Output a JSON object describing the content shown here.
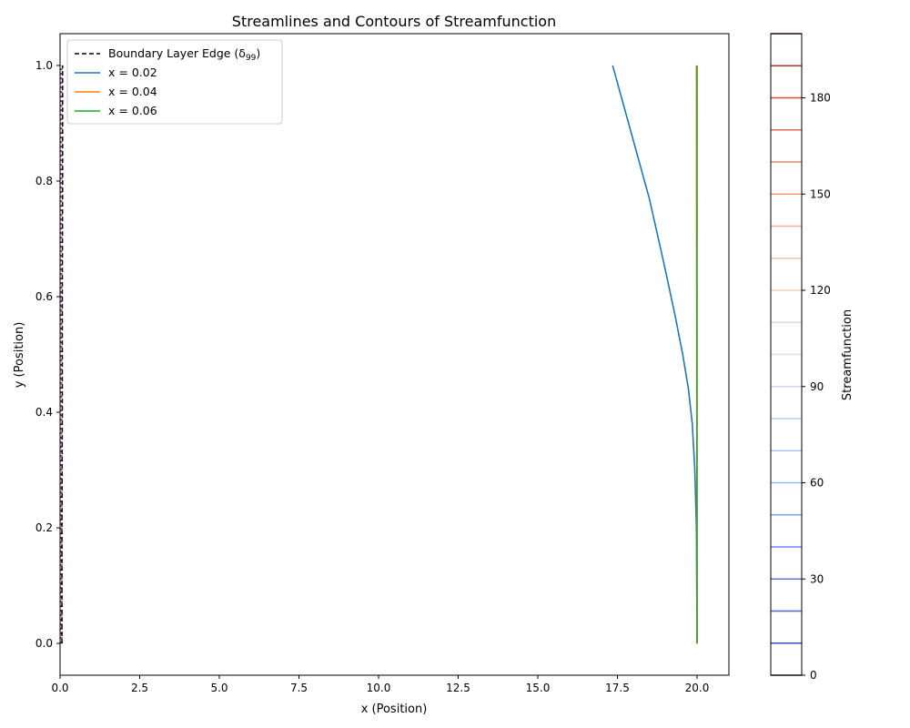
{
  "chart_data": {
    "type": "line",
    "title": "Streamlines and Contours of Streamfunction",
    "xlabel": "x (Position)",
    "ylabel": "y (Position)",
    "xlim": [
      0,
      21
    ],
    "ylim": [
      -0.055,
      1.055
    ],
    "xticks": [
      0,
      2.5,
      5,
      7.5,
      10,
      12.5,
      15,
      17.5,
      20
    ],
    "xtick_labels": [
      "0.0",
      "2.5",
      "5.0",
      "7.5",
      "10.0",
      "12.5",
      "15.0",
      "17.5",
      "20.0"
    ],
    "yticks": [
      0,
      0.2,
      0.4,
      0.6,
      0.8,
      1.0
    ],
    "ytick_labels": [
      "0.0",
      "0.2",
      "0.4",
      "0.6",
      "0.8",
      "1.0"
    ],
    "grid": false,
    "legend_position": "upper left",
    "legend": [
      {
        "label": "Boundary Layer Edge (δ",
        "sub": "99",
        "suffix": ")",
        "color": "#000000",
        "dash": true
      },
      {
        "label": "x = 0.02",
        "color": "#1f77b4",
        "dash": false
      },
      {
        "label": "x = 0.04",
        "color": "#ff7f0e",
        "dash": false
      },
      {
        "label": "x = 0.06",
        "color": "#2ca02c",
        "dash": false
      }
    ],
    "series": [
      {
        "name": "x = 0.02",
        "color": "#1f77b4",
        "x": [
          20.0,
          19.98,
          19.93,
          19.85,
          19.73,
          19.55,
          19.3,
          18.95,
          18.5,
          17.95,
          17.35
        ],
        "y": [
          0.0,
          0.2,
          0.3,
          0.38,
          0.44,
          0.5,
          0.57,
          0.66,
          0.77,
          0.88,
          1.0
        ]
      },
      {
        "name": "x = 0.04",
        "color": "#ff7f0e",
        "x": [
          20.0,
          19.995,
          19.99,
          19.985,
          19.98
        ],
        "y": [
          0.0,
          0.25,
          0.5,
          0.75,
          1.0
        ]
      },
      {
        "name": "x = 0.06",
        "color": "#2ca02c",
        "x": [
          20.0,
          20.0,
          20.0,
          20.0,
          20.0
        ],
        "y": [
          0.0,
          0.25,
          0.5,
          0.75,
          1.0
        ]
      }
    ],
    "boundary_layer_edge": {
      "x": [
        0.06,
        0.06,
        0.07,
        0.07,
        0.08,
        0.08
      ],
      "y": [
        0.0,
        0.2,
        0.4,
        0.6,
        0.8,
        1.0
      ]
    },
    "contours": {
      "x": [
        0.02,
        0.04,
        0.06
      ],
      "colors": [
        "#3b4cc0",
        "#b40426",
        "#9b59b6"
      ]
    },
    "colorbar": {
      "label": "Streamfunction",
      "range": [
        0,
        200
      ],
      "ticks": [
        0,
        30,
        60,
        90,
        120,
        150,
        180
      ],
      "levels": [
        0,
        10,
        20,
        30,
        40,
        50,
        60,
        70,
        80,
        90,
        100,
        110,
        120,
        130,
        140,
        150,
        160,
        170,
        180,
        190,
        200
      ],
      "level_colors": [
        "#1e2a6e",
        "#3b4cc0",
        "#4a62d2",
        "#5b7be0",
        "#6c8ff0",
        "#7fa3f8",
        "#93b5fe",
        "#a7c5fd",
        "#b9d0f9",
        "#cad8ef",
        "#d9dce1",
        "#e5d8d1",
        "#efcebd",
        "#f5c1a9",
        "#f7b093",
        "#f59c7d",
        "#ee8468",
        "#e36b55",
        "#d24b40",
        "#be2f2d",
        "#7a0a14"
      ]
    }
  }
}
